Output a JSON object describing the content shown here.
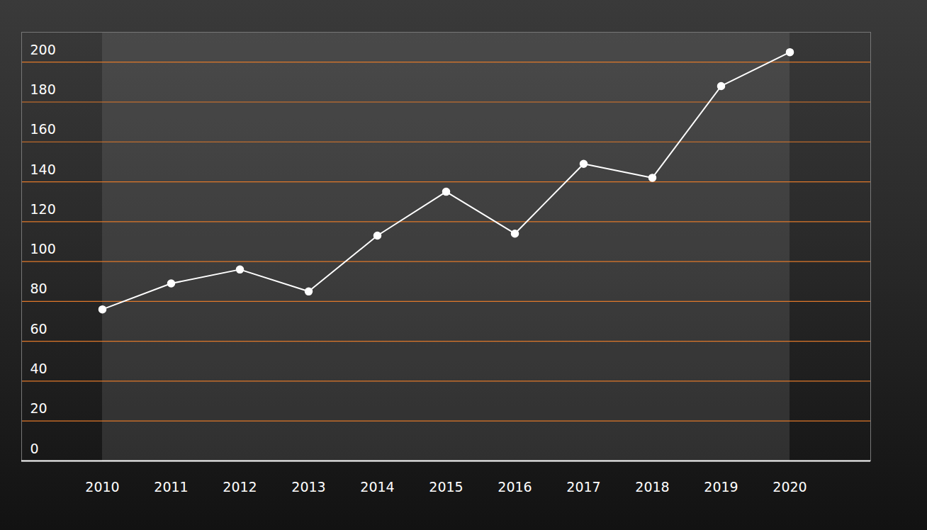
{
  "chart_data": {
    "type": "line",
    "categories": [
      "2010",
      "2011",
      "2012",
      "2013",
      "2014",
      "2015",
      "2016",
      "2017",
      "2018",
      "2019",
      "2020"
    ],
    "values": [
      76,
      89,
      96,
      85,
      113,
      135,
      114,
      149,
      142,
      188,
      205
    ],
    "color": "#ffffff",
    "marker": "circle",
    "ylim": [
      0,
      215
    ],
    "yticks": [
      0,
      20,
      40,
      60,
      80,
      100,
      120,
      140,
      160,
      180,
      200
    ],
    "grid": true
  }
}
